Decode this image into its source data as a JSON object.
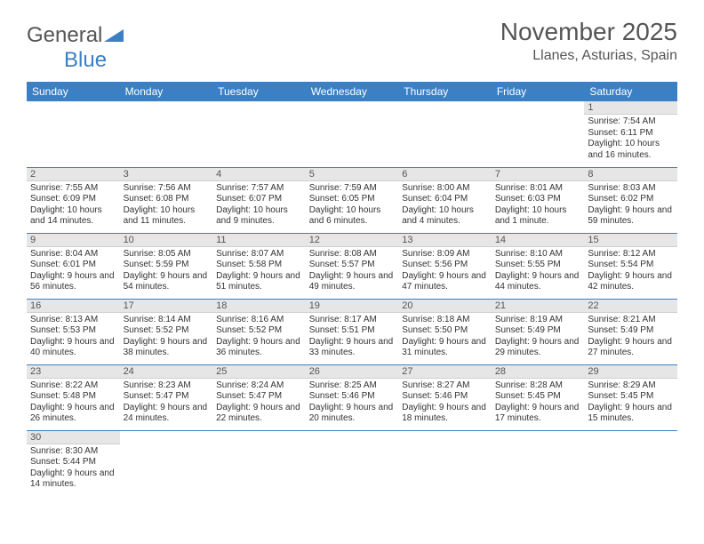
{
  "logo": {
    "general": "General",
    "blue": "Blue"
  },
  "title": {
    "month": "November 2025",
    "location": "Llanes, Asturias, Spain"
  },
  "colors": {
    "header_bg": "#3b7fc4",
    "header_fg": "#ffffff",
    "daynum_bg": "#e6e6e6",
    "rule": "#3b7fc4",
    "page_bg": "#ffffff",
    "text": "#333333"
  },
  "weekdays": [
    "Sunday",
    "Monday",
    "Tuesday",
    "Wednesday",
    "Thursday",
    "Friday",
    "Saturday"
  ],
  "weeks": [
    [
      {
        "blank": true
      },
      {
        "blank": true
      },
      {
        "blank": true
      },
      {
        "blank": true
      },
      {
        "blank": true
      },
      {
        "blank": true
      },
      {
        "n": "1",
        "sunrise": "Sunrise: 7:54 AM",
        "sunset": "Sunset: 6:11 PM",
        "daylight": "Daylight: 10 hours and 16 minutes."
      }
    ],
    [
      {
        "n": "2",
        "sunrise": "Sunrise: 7:55 AM",
        "sunset": "Sunset: 6:09 PM",
        "daylight": "Daylight: 10 hours and 14 minutes."
      },
      {
        "n": "3",
        "sunrise": "Sunrise: 7:56 AM",
        "sunset": "Sunset: 6:08 PM",
        "daylight": "Daylight: 10 hours and 11 minutes."
      },
      {
        "n": "4",
        "sunrise": "Sunrise: 7:57 AM",
        "sunset": "Sunset: 6:07 PM",
        "daylight": "Daylight: 10 hours and 9 minutes."
      },
      {
        "n": "5",
        "sunrise": "Sunrise: 7:59 AM",
        "sunset": "Sunset: 6:05 PM",
        "daylight": "Daylight: 10 hours and 6 minutes."
      },
      {
        "n": "6",
        "sunrise": "Sunrise: 8:00 AM",
        "sunset": "Sunset: 6:04 PM",
        "daylight": "Daylight: 10 hours and 4 minutes."
      },
      {
        "n": "7",
        "sunrise": "Sunrise: 8:01 AM",
        "sunset": "Sunset: 6:03 PM",
        "daylight": "Daylight: 10 hours and 1 minute."
      },
      {
        "n": "8",
        "sunrise": "Sunrise: 8:03 AM",
        "sunset": "Sunset: 6:02 PM",
        "daylight": "Daylight: 9 hours and 59 minutes."
      }
    ],
    [
      {
        "n": "9",
        "sunrise": "Sunrise: 8:04 AM",
        "sunset": "Sunset: 6:01 PM",
        "daylight": "Daylight: 9 hours and 56 minutes."
      },
      {
        "n": "10",
        "sunrise": "Sunrise: 8:05 AM",
        "sunset": "Sunset: 5:59 PM",
        "daylight": "Daylight: 9 hours and 54 minutes."
      },
      {
        "n": "11",
        "sunrise": "Sunrise: 8:07 AM",
        "sunset": "Sunset: 5:58 PM",
        "daylight": "Daylight: 9 hours and 51 minutes."
      },
      {
        "n": "12",
        "sunrise": "Sunrise: 8:08 AM",
        "sunset": "Sunset: 5:57 PM",
        "daylight": "Daylight: 9 hours and 49 minutes."
      },
      {
        "n": "13",
        "sunrise": "Sunrise: 8:09 AM",
        "sunset": "Sunset: 5:56 PM",
        "daylight": "Daylight: 9 hours and 47 minutes."
      },
      {
        "n": "14",
        "sunrise": "Sunrise: 8:10 AM",
        "sunset": "Sunset: 5:55 PM",
        "daylight": "Daylight: 9 hours and 44 minutes."
      },
      {
        "n": "15",
        "sunrise": "Sunrise: 8:12 AM",
        "sunset": "Sunset: 5:54 PM",
        "daylight": "Daylight: 9 hours and 42 minutes."
      }
    ],
    [
      {
        "n": "16",
        "sunrise": "Sunrise: 8:13 AM",
        "sunset": "Sunset: 5:53 PM",
        "daylight": "Daylight: 9 hours and 40 minutes."
      },
      {
        "n": "17",
        "sunrise": "Sunrise: 8:14 AM",
        "sunset": "Sunset: 5:52 PM",
        "daylight": "Daylight: 9 hours and 38 minutes."
      },
      {
        "n": "18",
        "sunrise": "Sunrise: 8:16 AM",
        "sunset": "Sunset: 5:52 PM",
        "daylight": "Daylight: 9 hours and 36 minutes."
      },
      {
        "n": "19",
        "sunrise": "Sunrise: 8:17 AM",
        "sunset": "Sunset: 5:51 PM",
        "daylight": "Daylight: 9 hours and 33 minutes."
      },
      {
        "n": "20",
        "sunrise": "Sunrise: 8:18 AM",
        "sunset": "Sunset: 5:50 PM",
        "daylight": "Daylight: 9 hours and 31 minutes."
      },
      {
        "n": "21",
        "sunrise": "Sunrise: 8:19 AM",
        "sunset": "Sunset: 5:49 PM",
        "daylight": "Daylight: 9 hours and 29 minutes."
      },
      {
        "n": "22",
        "sunrise": "Sunrise: 8:21 AM",
        "sunset": "Sunset: 5:49 PM",
        "daylight": "Daylight: 9 hours and 27 minutes."
      }
    ],
    [
      {
        "n": "23",
        "sunrise": "Sunrise: 8:22 AM",
        "sunset": "Sunset: 5:48 PM",
        "daylight": "Daylight: 9 hours and 26 minutes."
      },
      {
        "n": "24",
        "sunrise": "Sunrise: 8:23 AM",
        "sunset": "Sunset: 5:47 PM",
        "daylight": "Daylight: 9 hours and 24 minutes."
      },
      {
        "n": "25",
        "sunrise": "Sunrise: 8:24 AM",
        "sunset": "Sunset: 5:47 PM",
        "daylight": "Daylight: 9 hours and 22 minutes."
      },
      {
        "n": "26",
        "sunrise": "Sunrise: 8:25 AM",
        "sunset": "Sunset: 5:46 PM",
        "daylight": "Daylight: 9 hours and 20 minutes."
      },
      {
        "n": "27",
        "sunrise": "Sunrise: 8:27 AM",
        "sunset": "Sunset: 5:46 PM",
        "daylight": "Daylight: 9 hours and 18 minutes."
      },
      {
        "n": "28",
        "sunrise": "Sunrise: 8:28 AM",
        "sunset": "Sunset: 5:45 PM",
        "daylight": "Daylight: 9 hours and 17 minutes."
      },
      {
        "n": "29",
        "sunrise": "Sunrise: 8:29 AM",
        "sunset": "Sunset: 5:45 PM",
        "daylight": "Daylight: 9 hours and 15 minutes."
      }
    ],
    [
      {
        "n": "30",
        "sunrise": "Sunrise: 8:30 AM",
        "sunset": "Sunset: 5:44 PM",
        "daylight": "Daylight: 9 hours and 14 minutes."
      },
      {
        "blank": true
      },
      {
        "blank": true
      },
      {
        "blank": true
      },
      {
        "blank": true
      },
      {
        "blank": true
      },
      {
        "blank": true
      }
    ]
  ]
}
